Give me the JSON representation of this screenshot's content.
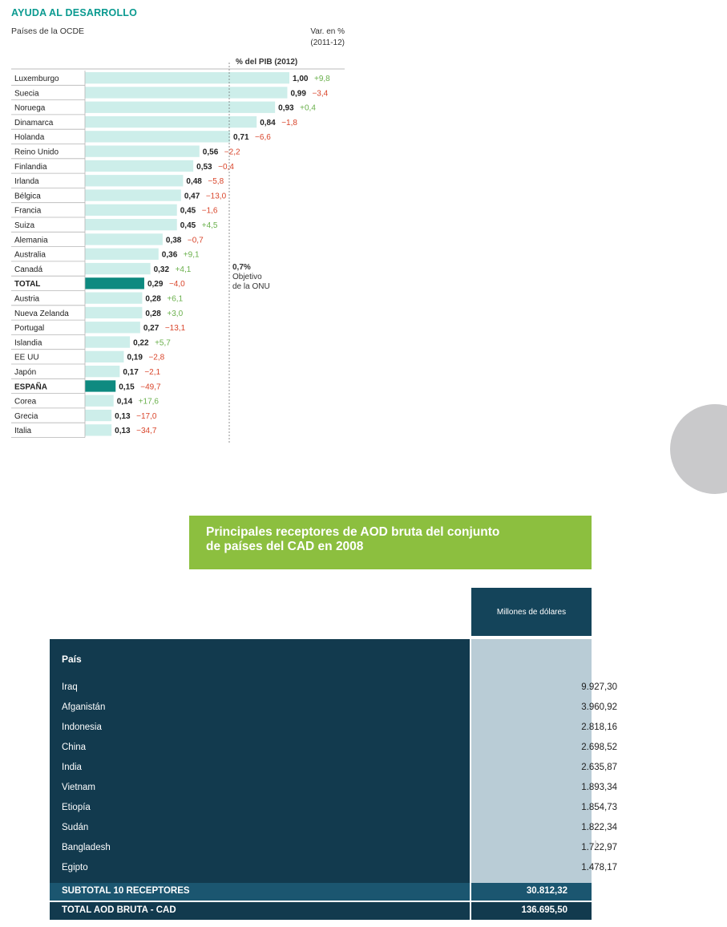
{
  "chart_data": [
    {
      "type": "bar",
      "orientation": "horizontal",
      "title": "AYUDA AL DESARROLLO",
      "subtitle": "Países de la OCDE",
      "value_label": "% del PIB (2012)",
      "variation_label": "Var. en %\n(2011-12)",
      "reference_line": {
        "value": 0.7,
        "label": "0,7%\nObjetivo\nde la ONU"
      },
      "xlim": [
        0,
        1.0
      ],
      "categories": [
        "Luxemburgo",
        "Suecia",
        "Noruega",
        "Dinamarca",
        "Holanda",
        "Reino Unido",
        "Finlandia",
        "Irlanda",
        "Bélgica",
        "Francia",
        "Suiza",
        "Alemania",
        "Australia",
        "Canadá",
        "TOTAL",
        "Austria",
        "Nueva Zelanda",
        "Portugal",
        "Islandia",
        "EE UU",
        "Japón",
        "ESPAÑA",
        "Corea",
        "Grecia",
        "Italia"
      ],
      "values": [
        1.0,
        0.99,
        0.93,
        0.84,
        0.71,
        0.56,
        0.53,
        0.48,
        0.47,
        0.45,
        0.45,
        0.38,
        0.36,
        0.32,
        0.29,
        0.28,
        0.28,
        0.27,
        0.22,
        0.19,
        0.17,
        0.15,
        0.14,
        0.13,
        0.13
      ],
      "value_labels": [
        "1,00",
        "0,99",
        "0,93",
        "0,84",
        "0,71",
        "0,56",
        "0,53",
        "0,48",
        "0,47",
        "0,45",
        "0,45",
        "0,38",
        "0,36",
        "0,32",
        "0,29",
        "0,28",
        "0,28",
        "0,27",
        "0,22",
        "0,19",
        "0,17",
        "0,15",
        "0,14",
        "0,13",
        "0,13"
      ],
      "variation": [
        "+9,8",
        "−3,4",
        "+0,4",
        "−1,8",
        "−6,6",
        "−2,2",
        "−0,4",
        "−5,8",
        "−13,0",
        "−1,6",
        "+4,5",
        "−0,7",
        "+9,1",
        "+4,1",
        "−4,0",
        "+6,1",
        "+3,0",
        "−13,1",
        "+5,7",
        "−2,8",
        "−2,1",
        "−49,7",
        "+17,6",
        "−17,0",
        "−34,7"
      ],
      "highlighted": [
        "TOTAL",
        "ESPAÑA"
      ],
      "colors": {
        "bar": "#cdeeea",
        "highlight": "#0e8a80",
        "title": "#0a9a90",
        "positive": "#6ab04c",
        "negative": "#d9452b"
      }
    },
    {
      "type": "table",
      "title": "Principales receptores de AOD bruta del conjunto de países del CAD en 2008",
      "columns": [
        "País",
        "Millones de dólares"
      ],
      "rows": [
        {
          "country": "Iraq",
          "value": "9.927,30"
        },
        {
          "country": "Afganistán",
          "value": "3.960,92"
        },
        {
          "country": "Indonesia",
          "value": "2.818,16"
        },
        {
          "country": "China",
          "value": "2.698,52"
        },
        {
          "country": "India",
          "value": "2.635,87"
        },
        {
          "country": "Vietnam",
          "value": "1.893,34"
        },
        {
          "country": "Etiopía",
          "value": "1.854,73"
        },
        {
          "country": "Sudán",
          "value": "1.822,34"
        },
        {
          "country": "Bangladesh",
          "value": "1.722,97"
        },
        {
          "country": "Egipto",
          "value": "1.478,17"
        }
      ],
      "subtotal": {
        "label": "SUBTOTAL 10 RECEPTORES",
        "value": "30.812,32"
      },
      "total": {
        "label": "TOTAL AOD BRUTA - CAD",
        "value": "136.695,50"
      }
    }
  ],
  "table": {
    "title_line1": "Principales receptores de AOD bruta del conjunto",
    "title_line2": "de países del CAD en 2008",
    "col_value_header": "Millones de dólares",
    "col_country_header": "País"
  }
}
